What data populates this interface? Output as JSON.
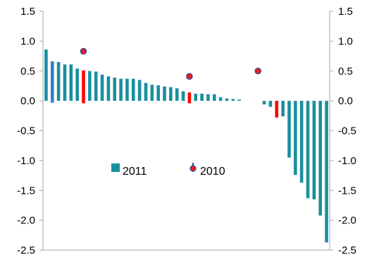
{
  "chart_data": {
    "type": "bar",
    "title": "",
    "xlabel": "",
    "ylabel": "",
    "ylim": [
      -2.5,
      1.5
    ],
    "yticks": [
      "1.5",
      "1.0",
      "0.5",
      "0.0",
      "-0.5",
      "-1.0",
      "-1.5",
      "-2.0",
      "-2.5"
    ],
    "ytick_values": [
      1.5,
      1.0,
      0.5,
      0.0,
      -0.5,
      -1.0,
      -1.5,
      -2.0,
      -2.5
    ],
    "secondary_yticks": [
      "1.5",
      "1.0",
      "0.5",
      "0.0",
      "-0.5",
      "-1.0",
      "-1.5",
      "-2.0",
      "-2.5"
    ],
    "legend_placement": "center-left",
    "grid": false,
    "colors": {
      "bar_default": "#1a8fa0",
      "bar_highlight_blue": "#2e7fc1",
      "bar_highlight_red": "#ff0000",
      "marker_fill": "#ee1c25",
      "marker_edge": "#1f4e9c",
      "axis": "#a6a6a6"
    },
    "series": [
      {
        "name": "2011",
        "kind": "bar",
        "values": [
          0.86,
          0.66,
          0.65,
          0.61,
          0.61,
          0.54,
          0.51,
          0.5,
          0.49,
          0.44,
          0.41,
          0.39,
          0.37,
          0.37,
          0.37,
          0.35,
          0.3,
          0.27,
          0.26,
          0.24,
          0.23,
          0.21,
          0.16,
          0.14,
          0.12,
          0.12,
          0.11,
          0.11,
          0.06,
          0.04,
          0.03,
          0.02,
          0.0,
          0.0,
          0.0,
          -0.06,
          -0.1,
          -0.28,
          -0.26,
          -0.95,
          -1.24,
          -1.37,
          -1.63,
          -1.65,
          -1.92,
          -2.37
        ],
        "highlight_blue": [
          1
        ],
        "highlight_red": [
          6,
          23,
          37
        ]
      },
      {
        "name": "",
        "kind": "bar",
        "values": [
          null,
          -0.03,
          null,
          null,
          null,
          null,
          -0.04,
          null,
          null,
          null,
          null,
          null,
          null,
          null,
          null,
          null,
          null,
          null,
          null,
          null,
          null,
          null,
          null,
          -0.04,
          null,
          null,
          null,
          null,
          null,
          null,
          null,
          null,
          null,
          null,
          null,
          null,
          null,
          null,
          null,
          null,
          null,
          null,
          null,
          null,
          null,
          null
        ]
      },
      {
        "name": "2010",
        "kind": "marker",
        "points": [
          {
            "index": 6,
            "value": 0.83
          },
          {
            "index": 23,
            "value": 0.41
          },
          {
            "index": 34,
            "value": 0.5
          }
        ]
      }
    ]
  },
  "legend": {
    "bar_label": "2011",
    "marker_label": "2010"
  }
}
